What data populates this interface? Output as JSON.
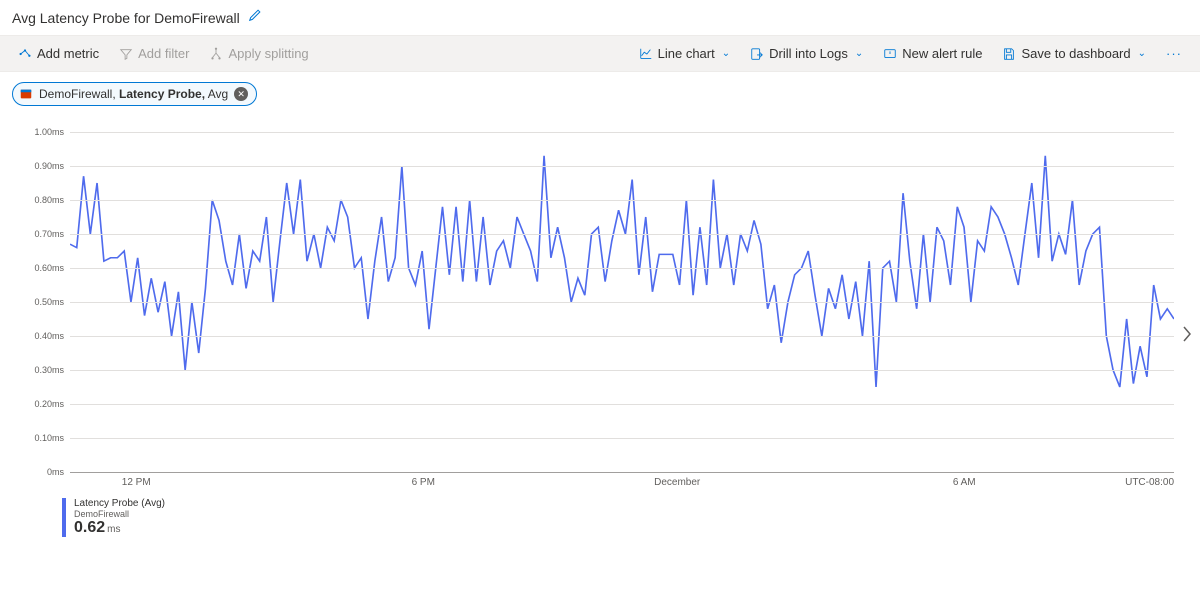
{
  "header": {
    "title": "Avg Latency Probe for DemoFirewall"
  },
  "toolbar": {
    "add_metric": "Add metric",
    "add_filter": "Add filter",
    "apply_splitting": "Apply splitting",
    "chart_type": "Line chart",
    "drill_logs": "Drill into Logs",
    "new_alert": "New alert rule",
    "save_dashboard": "Save to dashboard"
  },
  "chip": {
    "resource": "DemoFirewall,",
    "metric": "Latency Probe,",
    "agg": "Avg"
  },
  "chart": {
    "type": "line",
    "line_color": "#4f6bed",
    "grid_color": "#e1dfdd",
    "background_color": "#ffffff",
    "y_ticks": [
      "0ms",
      "0.10ms",
      "0.20ms",
      "0.30ms",
      "0.40ms",
      "0.50ms",
      "0.60ms",
      "0.70ms",
      "0.80ms",
      "0.90ms",
      "1.00ms"
    ],
    "y_min": 0,
    "y_max": 1.0,
    "x_ticks": [
      {
        "pos": 0.06,
        "label": "12 PM"
      },
      {
        "pos": 0.32,
        "label": "6 PM"
      },
      {
        "pos": 0.55,
        "label": "December"
      },
      {
        "pos": 0.81,
        "label": "6 AM"
      }
    ],
    "timezone": "UTC-08:00",
    "values": [
      0.67,
      0.66,
      0.87,
      0.7,
      0.85,
      0.62,
      0.63,
      0.63,
      0.65,
      0.5,
      0.63,
      0.46,
      0.57,
      0.47,
      0.56,
      0.4,
      0.53,
      0.3,
      0.5,
      0.35,
      0.54,
      0.8,
      0.74,
      0.62,
      0.55,
      0.7,
      0.54,
      0.65,
      0.62,
      0.75,
      0.5,
      0.68,
      0.85,
      0.7,
      0.86,
      0.62,
      0.7,
      0.6,
      0.72,
      0.68,
      0.8,
      0.75,
      0.6,
      0.63,
      0.45,
      0.62,
      0.75,
      0.56,
      0.63,
      0.9,
      0.6,
      0.55,
      0.65,
      0.42,
      0.6,
      0.78,
      0.58,
      0.78,
      0.56,
      0.8,
      0.56,
      0.75,
      0.55,
      0.65,
      0.68,
      0.6,
      0.75,
      0.7,
      0.65,
      0.56,
      0.93,
      0.63,
      0.72,
      0.63,
      0.5,
      0.57,
      0.52,
      0.7,
      0.72,
      0.56,
      0.68,
      0.77,
      0.7,
      0.86,
      0.58,
      0.75,
      0.53,
      0.64,
      0.64,
      0.64,
      0.55,
      0.8,
      0.52,
      0.72,
      0.55,
      0.86,
      0.6,
      0.7,
      0.55,
      0.7,
      0.65,
      0.74,
      0.67,
      0.48,
      0.55,
      0.38,
      0.5,
      0.58,
      0.6,
      0.65,
      0.52,
      0.4,
      0.54,
      0.48,
      0.58,
      0.45,
      0.56,
      0.4,
      0.62,
      0.25,
      0.6,
      0.62,
      0.5,
      0.82,
      0.62,
      0.48,
      0.7,
      0.5,
      0.72,
      0.68,
      0.55,
      0.78,
      0.72,
      0.5,
      0.68,
      0.65,
      0.78,
      0.75,
      0.7,
      0.63,
      0.55,
      0.7,
      0.85,
      0.63,
      0.93,
      0.62,
      0.7,
      0.64,
      0.8,
      0.55,
      0.65,
      0.7,
      0.72,
      0.4,
      0.3,
      0.25,
      0.45,
      0.26,
      0.37,
      0.28,
      0.55,
      0.45,
      0.48,
      0.45
    ]
  },
  "legend": {
    "title": "Latency Probe (Avg)",
    "subtitle": "DemoFirewall",
    "value": "0.62",
    "unit": "ms"
  }
}
